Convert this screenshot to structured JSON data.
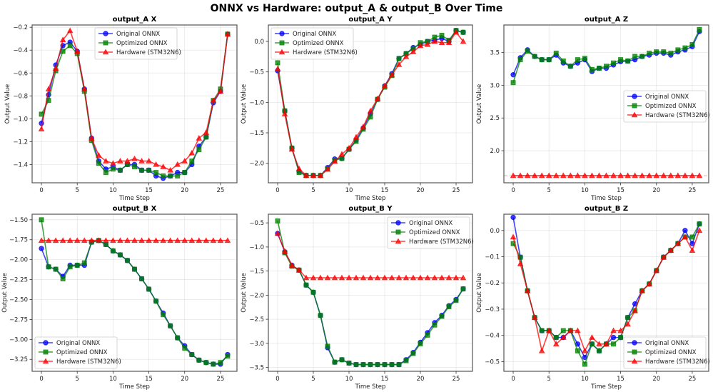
{
  "figure": {
    "title": "ONNX vs Hardware: output_A & output_B Over Time"
  },
  "series_styles": [
    {
      "name": "Original ONNX",
      "color": "#0000ff",
      "marker": "circle"
    },
    {
      "name": "Optimized ONNX",
      "color": "#008000",
      "marker": "square"
    },
    {
      "name": "Hardware (STM32N6)",
      "color": "#ff0000",
      "marker": "triangle"
    }
  ],
  "chart_data": [
    {
      "type": "line",
      "title": "output_A X",
      "xlabel": "Time Step",
      "ylabel": "Output Value",
      "xlim": [
        -1.3,
        27.3
      ],
      "ylim": [
        -1.56,
        -0.18
      ],
      "xticks": [
        0,
        5,
        10,
        15,
        20,
        25
      ],
      "yticks": [
        -1.4,
        -1.2,
        -1.0,
        -0.8,
        -0.6,
        -0.4,
        -0.2
      ],
      "ytick_labels": [
        "−1.4",
        "−1.2",
        "−1.0",
        "−0.8",
        "−0.6",
        "−0.4",
        "−0.2"
      ],
      "grid": true,
      "legend": "upper-center",
      "x": [
        0,
        1,
        2,
        3,
        4,
        5,
        6,
        7,
        8,
        9,
        10,
        11,
        12,
        13,
        14,
        15,
        16,
        17,
        18,
        19,
        20,
        21,
        22,
        23,
        24,
        25,
        26
      ],
      "series": [
        {
          "name": "Original ONNX",
          "values": [
            -1.04,
            -0.79,
            -0.53,
            -0.36,
            -0.33,
            -0.41,
            -0.74,
            -1.17,
            -1.37,
            -1.44,
            -1.42,
            -1.45,
            -1.4,
            -1.4,
            -1.45,
            -1.45,
            -1.5,
            -1.52,
            -1.5,
            -1.47,
            -1.47,
            -1.4,
            -1.24,
            -1.16,
            -0.86,
            -0.76,
            -0.26
          ]
        },
        {
          "name": "Optimized ONNX",
          "values": [
            -0.96,
            -0.84,
            -0.58,
            -0.41,
            -0.36,
            -0.43,
            -0.76,
            -1.19,
            -1.39,
            -1.47,
            -1.44,
            -1.45,
            -1.4,
            -1.42,
            -1.45,
            -1.45,
            -1.47,
            -1.5,
            -1.5,
            -1.5,
            -1.47,
            -1.37,
            -1.27,
            -1.16,
            -0.84,
            -0.74,
            -0.26
          ]
        },
        {
          "name": "Hardware (STM32N6)",
          "values": [
            -1.09,
            -0.74,
            -0.56,
            -0.31,
            -0.23,
            -0.41,
            -0.74,
            -1.17,
            -1.32,
            -1.37,
            -1.39,
            -1.37,
            -1.37,
            -1.35,
            -1.37,
            -1.37,
            -1.4,
            -1.42,
            -1.45,
            -1.4,
            -1.37,
            -1.3,
            -1.17,
            -1.12,
            -0.84,
            -0.76,
            -0.26
          ]
        }
      ]
    },
    {
      "type": "line",
      "title": "output_A Y",
      "xlabel": "Time Step",
      "ylabel": "Output Value",
      "xlim": [
        -1.3,
        27.3
      ],
      "ylim": [
        -2.32,
        0.27
      ],
      "xticks": [
        0,
        5,
        10,
        15,
        20,
        25
      ],
      "yticks": [
        -2.0,
        -1.5,
        -1.0,
        -0.5,
        0.0
      ],
      "ytick_labels": [
        "−2.0",
        "−1.5",
        "−1.0",
        "−0.5",
        "0.0"
      ],
      "grid": true,
      "legend": "upper-left",
      "x": [
        0,
        1,
        2,
        3,
        4,
        5,
        6,
        7,
        8,
        9,
        10,
        11,
        12,
        13,
        14,
        15,
        16,
        17,
        18,
        19,
        20,
        21,
        22,
        23,
        24,
        25,
        26
      ],
      "series": [
        {
          "name": "Original ONNX",
          "values": [
            -0.48,
            -1.14,
            -1.75,
            -2.13,
            -2.2,
            -2.2,
            -2.2,
            -2.07,
            -1.93,
            -1.92,
            -1.77,
            -1.62,
            -1.42,
            -1.19,
            -0.95,
            -0.73,
            -0.53,
            -0.28,
            -0.2,
            -0.1,
            -0.05,
            0.0,
            0.02,
            0.05,
            0.0,
            0.18,
            0.15
          ]
        },
        {
          "name": "Optimized ONNX",
          "values": [
            -0.35,
            -1.14,
            -1.75,
            -2.15,
            -2.2,
            -2.2,
            -2.2,
            -2.09,
            -1.95,
            -1.92,
            -1.77,
            -1.64,
            -1.44,
            -1.24,
            -0.95,
            -0.75,
            -0.56,
            -0.28,
            -0.2,
            -0.12,
            -0.02,
            0.0,
            0.07,
            0.1,
            0.02,
            0.18,
            0.15
          ]
        },
        {
          "name": "Hardware (STM32N6)",
          "values": [
            -0.45,
            -1.19,
            -1.77,
            -2.09,
            -2.2,
            -2.2,
            -2.2,
            -2.1,
            -1.97,
            -1.85,
            -1.75,
            -1.57,
            -1.4,
            -1.14,
            -0.94,
            -0.73,
            -0.55,
            -0.38,
            -0.25,
            -0.17,
            -0.07,
            -0.05,
            0.0,
            -0.02,
            -0.02,
            0.15,
            0.0
          ]
        }
      ]
    },
    {
      "type": "line",
      "title": "output_A Z",
      "xlabel": "Time Step",
      "ylabel": "Output Value",
      "xlim": [
        -1.3,
        27.3
      ],
      "ylim": [
        1.51,
        3.92
      ],
      "xticks": [
        0,
        5,
        10,
        15,
        20,
        25
      ],
      "yticks": [
        2.0,
        2.5,
        3.0,
        3.5
      ],
      "ytick_labels": [
        "2.0",
        "2.5",
        "3.0",
        "3.5"
      ],
      "grid": true,
      "legend": "center-right",
      "reference_line": 1.62,
      "x": [
        0,
        1,
        2,
        3,
        4,
        5,
        6,
        7,
        8,
        9,
        10,
        11,
        12,
        13,
        14,
        15,
        16,
        17,
        18,
        19,
        20,
        21,
        22,
        23,
        24,
        25,
        26
      ],
      "series": [
        {
          "name": "Original ONNX",
          "values": [
            3.16,
            3.42,
            3.54,
            3.44,
            3.39,
            3.39,
            3.46,
            3.34,
            3.29,
            3.34,
            3.39,
            3.21,
            3.26,
            3.26,
            3.31,
            3.36,
            3.37,
            3.39,
            3.44,
            3.46,
            3.49,
            3.49,
            3.46,
            3.51,
            3.54,
            3.59,
            3.82
          ]
        },
        {
          "name": "Optimized ONNX",
          "values": [
            3.04,
            3.39,
            3.52,
            3.44,
            3.39,
            3.39,
            3.49,
            3.37,
            3.29,
            3.39,
            3.41,
            3.24,
            3.26,
            3.29,
            3.34,
            3.39,
            3.37,
            3.44,
            3.44,
            3.49,
            3.51,
            3.51,
            3.49,
            3.54,
            3.57,
            3.62,
            3.85
          ]
        },
        {
          "name": "Hardware (STM32N6)",
          "values": [
            1.62,
            1.62,
            1.62,
            1.62,
            1.62,
            1.62,
            1.62,
            1.62,
            1.62,
            1.62,
            1.62,
            1.62,
            1.62,
            1.62,
            1.62,
            1.62,
            1.62,
            1.62,
            1.62,
            1.62,
            1.62,
            1.62,
            1.62,
            1.62,
            1.62,
            1.62,
            1.62
          ]
        }
      ]
    },
    {
      "type": "line",
      "title": "output_B X",
      "xlabel": "Time Step",
      "ylabel": "Output Value",
      "xlim": [
        -1.3,
        27.3
      ],
      "ylim": [
        -3.4,
        -1.43
      ],
      "xticks": [
        0,
        5,
        10,
        15,
        20,
        25
      ],
      "yticks": [
        -3.25,
        -3.0,
        -2.75,
        -2.5,
        -2.25,
        -2.0,
        -1.75,
        -1.5
      ],
      "ytick_labels": [
        "−3.25",
        "−3.00",
        "−2.75",
        "−2.50",
        "−2.25",
        "−2.00",
        "−1.75",
        "−1.50"
      ],
      "grid": true,
      "legend": "lower-left",
      "x": [
        0,
        1,
        2,
        3,
        4,
        5,
        6,
        7,
        8,
        9,
        10,
        11,
        12,
        13,
        14,
        15,
        16,
        17,
        18,
        19,
        20,
        21,
        22,
        23,
        24,
        25,
        26
      ],
      "series": [
        {
          "name": "Original ONNX",
          "values": [
            -1.86,
            -2.09,
            -2.12,
            -2.21,
            -2.07,
            -2.07,
            -2.07,
            -1.78,
            -1.76,
            -1.81,
            -1.89,
            -1.94,
            -2.01,
            -2.12,
            -2.24,
            -2.37,
            -2.52,
            -2.67,
            -2.83,
            -2.98,
            -3.08,
            -3.19,
            -3.26,
            -3.29,
            -3.31,
            -3.31,
            -3.19
          ]
        },
        {
          "name": "Optimized ONNX",
          "values": [
            -1.5,
            -2.09,
            -2.12,
            -2.24,
            -2.09,
            -2.07,
            -2.04,
            -1.78,
            -1.76,
            -1.81,
            -1.89,
            -1.94,
            -2.01,
            -2.12,
            -2.24,
            -2.37,
            -2.52,
            -2.69,
            -2.83,
            -2.98,
            -3.11,
            -3.19,
            -3.26,
            -3.29,
            -3.31,
            -3.29,
            -3.21
          ]
        },
        {
          "name": "Hardware (STM32N6)",
          "values": [
            -1.76,
            -1.76,
            -1.76,
            -1.76,
            -1.76,
            -1.76,
            -1.76,
            -1.76,
            -1.76,
            -1.76,
            -1.76,
            -1.76,
            -1.76,
            -1.76,
            -1.76,
            -1.76,
            -1.76,
            -1.76,
            -1.76,
            -1.76,
            -1.76,
            -1.76,
            -1.76,
            -1.76,
            -1.76,
            -1.76,
            -1.76
          ]
        }
      ]
    },
    {
      "type": "line",
      "title": "output_B Y",
      "xlabel": "Time Step",
      "ylabel": "Output Value",
      "xlim": [
        -1.3,
        27.3
      ],
      "ylim": [
        -3.58,
        -0.32
      ],
      "xticks": [
        0,
        5,
        10,
        15,
        20,
        25
      ],
      "yticks": [
        -3.5,
        -3.0,
        -2.5,
        -2.0,
        -1.5,
        -1.0,
        -0.5
      ],
      "ytick_labels": [
        "−3.5",
        "−3.0",
        "−2.5",
        "−2.0",
        "−1.5",
        "−1.0",
        "−0.5"
      ],
      "grid": true,
      "legend": "upper-right",
      "x": [
        0,
        1,
        2,
        3,
        4,
        5,
        6,
        7,
        8,
        9,
        10,
        11,
        12,
        13,
        14,
        15,
        16,
        17,
        18,
        19,
        20,
        21,
        22,
        23,
        24,
        25,
        26
      ],
      "series": [
        {
          "name": "Original ONNX",
          "values": [
            -0.72,
            -1.1,
            -1.38,
            -1.48,
            -1.79,
            -1.94,
            -2.42,
            -3.09,
            -3.39,
            -3.34,
            -3.41,
            -3.44,
            -3.44,
            -3.44,
            -3.44,
            -3.44,
            -3.44,
            -3.44,
            -3.34,
            -3.19,
            -2.98,
            -2.78,
            -2.57,
            -2.42,
            -2.22,
            -2.09,
            -1.87
          ]
        },
        {
          "name": "Optimized ONNX",
          "values": [
            -0.46,
            -1.12,
            -1.4,
            -1.48,
            -1.79,
            -1.94,
            -2.42,
            -3.06,
            -3.39,
            -3.34,
            -3.41,
            -3.44,
            -3.44,
            -3.44,
            -3.44,
            -3.44,
            -3.44,
            -3.44,
            -3.36,
            -3.21,
            -3.01,
            -2.83,
            -2.62,
            -2.44,
            -2.24,
            -2.11,
            -1.87
          ]
        },
        {
          "name": "Hardware (STM32N6)",
          "values": [
            -0.72,
            -1.09,
            -1.38,
            -1.48,
            -1.64,
            -1.64,
            -1.64,
            -1.64,
            -1.64,
            -1.64,
            -1.64,
            -1.64,
            -1.64,
            -1.64,
            -1.64,
            -1.64,
            -1.64,
            -1.64,
            -1.64,
            -1.64,
            -1.64,
            -1.64,
            -1.64,
            -1.64,
            -1.64,
            -1.64,
            -1.64
          ]
        }
      ]
    },
    {
      "type": "line",
      "title": "output_B Z",
      "xlabel": "Time Step",
      "ylabel": "Output Value",
      "xlim": [
        -1.3,
        27.3
      ],
      "ylim": [
        -0.537,
        0.062
      ],
      "xticks": [
        0,
        5,
        10,
        15,
        20,
        25
      ],
      "yticks": [
        -0.5,
        -0.4,
        -0.3,
        -0.2,
        -0.1,
        0.0
      ],
      "ytick_labels": [
        "−0.5",
        "−0.4",
        "−0.3",
        "−0.2",
        "−0.1",
        "0.0"
      ],
      "grid": true,
      "legend": "lower-right",
      "x": [
        0,
        1,
        2,
        3,
        4,
        5,
        6,
        7,
        8,
        9,
        10,
        11,
        12,
        13,
        14,
        15,
        16,
        17,
        18,
        19,
        20,
        21,
        22,
        23,
        24,
        25,
        26
      ],
      "series": [
        {
          "name": "Original ONNX",
          "values": [
            0.05,
            -0.102,
            -0.23,
            -0.332,
            -0.382,
            -0.382,
            -0.408,
            -0.408,
            -0.382,
            -0.433,
            -0.484,
            -0.433,
            -0.459,
            -0.433,
            -0.408,
            -0.408,
            -0.332,
            -0.28,
            -0.23,
            -0.204,
            -0.153,
            -0.102,
            -0.076,
            -0.05,
            0.0,
            -0.05,
            0.025
          ]
        },
        {
          "name": "Optimized ONNX",
          "values": [
            -0.05,
            -0.102,
            -0.23,
            -0.332,
            -0.382,
            -0.382,
            -0.408,
            -0.382,
            -0.382,
            -0.459,
            -0.51,
            -0.433,
            -0.459,
            -0.433,
            -0.433,
            -0.408,
            -0.332,
            -0.306,
            -0.23,
            -0.204,
            -0.153,
            -0.102,
            -0.076,
            -0.05,
            -0.025,
            -0.025,
            0.025
          ]
        },
        {
          "name": "Hardware (STM32N6)",
          "values": [
            -0.025,
            -0.127,
            -0.23,
            -0.332,
            -0.459,
            -0.382,
            -0.433,
            -0.408,
            -0.382,
            -0.382,
            -0.459,
            -0.408,
            -0.433,
            -0.433,
            -0.382,
            -0.382,
            -0.357,
            -0.306,
            -0.23,
            -0.204,
            -0.153,
            -0.102,
            -0.076,
            -0.05,
            -0.025,
            -0.076,
            0.0
          ]
        }
      ]
    }
  ]
}
